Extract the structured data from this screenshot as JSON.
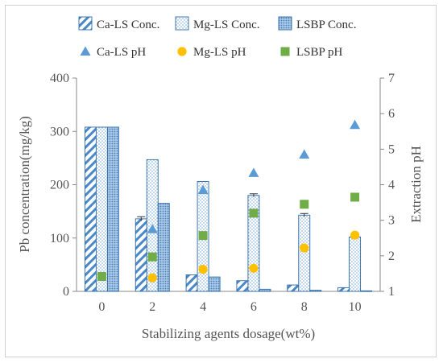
{
  "chart_data": {
    "type": "bar",
    "xlabel": "Stabilizing agents dosage(wt%)",
    "ylabel": "Pb concentration(mg/kg)",
    "y2label": "Extraction pH",
    "categories": [
      "0",
      "2",
      "4",
      "6",
      "8",
      "10"
    ],
    "ylim": [
      0,
      400
    ],
    "y2lim": [
      1,
      7
    ],
    "yticks": [
      "0",
      "100",
      "200",
      "300",
      "400"
    ],
    "y2ticks": [
      "1",
      "2",
      "3",
      "4",
      "5",
      "6",
      "7"
    ],
    "bar_series": [
      {
        "name": "Ca-LS Conc.",
        "values": [
          308,
          136,
          31,
          20,
          12,
          7
        ],
        "errors": [
          0,
          4,
          0,
          0,
          0,
          0
        ]
      },
      {
        "name": "Mg-LS Conc.",
        "values": [
          308,
          247,
          206,
          180,
          143,
          102
        ],
        "errors": [
          0,
          0,
          0,
          3,
          3,
          0
        ]
      },
      {
        "name": "LSBP Conc.",
        "values": [
          308,
          165,
          27,
          4,
          2,
          1
        ],
        "errors": [
          0,
          0,
          0,
          0,
          0,
          0
        ]
      }
    ],
    "point_series": [
      {
        "name": "Ca-LS pH",
        "marker": "triangle",
        "color": "#5b9bd5",
        "values": [
          null,
          2.75,
          3.85,
          4.33,
          4.85,
          5.68
        ]
      },
      {
        "name": "Mg-LS pH",
        "marker": "circle",
        "color": "#ffc000",
        "values": [
          null,
          1.38,
          1.62,
          1.65,
          2.22,
          2.58
        ]
      },
      {
        "name": "LSBP pH",
        "marker": "square",
        "color": "#70ad47",
        "values": [
          1.42,
          1.97,
          2.57,
          3.2,
          3.45,
          3.65
        ]
      }
    ],
    "legend_position": "top",
    "grid": false
  }
}
